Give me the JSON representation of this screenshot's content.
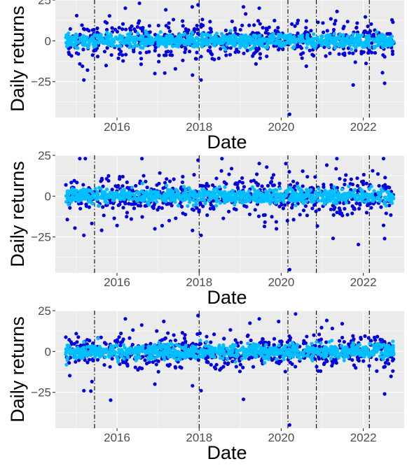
{
  "chart_data": [
    {
      "type": "scatter",
      "title": "",
      "xlabel": "Date",
      "ylabel": "Daily returns",
      "xlim": [
        "2014-07-01",
        "2022-12-31"
      ],
      "ylim": [
        -47,
        25
      ],
      "x_ticks": [
        "2016",
        "2018",
        "2020",
        "2022"
      ],
      "y_ticks": [
        "25",
        "0",
        "−25"
      ],
      "grid": true,
      "vertical_lines": [
        "2015-06-15",
        "2018-01-01",
        "2020-03-01",
        "2020-11-09",
        "2022-02-24"
      ],
      "series": [
        {
          "color": "#0000dd",
          "spread": 5.5,
          "points": [
            [
              "2015-03-12",
              -24
            ],
            [
              "2016-12-03",
              -20
            ],
            [
              "2017-11-03",
              -21
            ],
            [
              "2017-12-22",
              22
            ],
            [
              "2018-01-18",
              -24
            ],
            [
              "2019-06-20",
              20
            ],
            [
              "2020-03-16",
              -45
            ],
            [
              "2022-07-10",
              -26
            ],
            [
              "2016-03-15",
              20
            ],
            [
              "2017-03-10",
              19
            ]
          ]
        },
        {
          "color": "#00bfff",
          "spread": 2,
          "points": []
        }
      ]
    },
    {
      "type": "scatter",
      "title": "",
      "xlabel": "Date",
      "ylabel": "Daily returns",
      "xlim": [
        "2014-07-01",
        "2022-12-31"
      ],
      "ylim": [
        -47,
        25
      ],
      "x_ticks": [
        "2016",
        "2018",
        "2020",
        "2022"
      ],
      "y_ticks": [
        "25",
        "0",
        "−25"
      ],
      "grid": true,
      "vertical_lines": [
        "2015-06-15",
        "2018-01-01",
        "2020-03-01",
        "2020-11-09",
        "2022-02-24"
      ],
      "series": [
        {
          "color": "#0000dd",
          "spread": 6,
          "points": [
            [
              "2015-03-12",
              -24
            ],
            [
              "2016-12-03",
              -20
            ],
            [
              "2017-11-03",
              -21
            ],
            [
              "2017-12-22",
              22
            ],
            [
              "2018-01-18",
              -24
            ],
            [
              "2019-06-20",
              20
            ],
            [
              "2020-03-16",
              -45
            ],
            [
              "2022-07-10",
              -26
            ],
            [
              "2021-02-10",
              19
            ]
          ]
        },
        {
          "color": "#00bfff",
          "spread": 2.3,
          "points": []
        }
      ]
    },
    {
      "type": "scatter",
      "title": "",
      "xlabel": "Date",
      "ylabel": "Daily returns",
      "xlim": [
        "2014-07-01",
        "2022-12-31"
      ],
      "ylim": [
        -47,
        25
      ],
      "x_ticks": [
        "2016",
        "2018",
        "2020",
        "2022"
      ],
      "y_ticks": [
        "25",
        "0",
        "−25"
      ],
      "grid": true,
      "vertical_lines": [
        "2015-06-15",
        "2018-01-01",
        "2020-03-01",
        "2020-11-09",
        "2022-02-24"
      ],
      "series": [
        {
          "color": "#0000dd",
          "spread": 5,
          "points": [
            [
              "2015-03-12",
              -24
            ],
            [
              "2016-12-03",
              -20
            ],
            [
              "2017-11-03",
              -21
            ],
            [
              "2017-12-22",
              22
            ],
            [
              "2018-01-18",
              -24
            ],
            [
              "2019-06-20",
              20
            ],
            [
              "2020-03-16",
              -45
            ],
            [
              "2022-07-10",
              -26
            ],
            [
              "2016-03-15",
              20
            ],
            [
              "2021-02-10",
              19
            ]
          ]
        },
        {
          "color": "#00bfff",
          "spread": 2.3,
          "points": []
        }
      ]
    }
  ]
}
